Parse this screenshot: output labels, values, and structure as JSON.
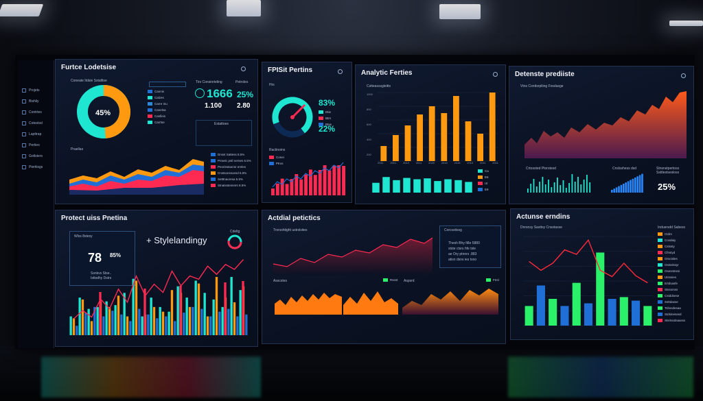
{
  "colors": {
    "cyan": "#1ee6d0",
    "orange": "#ff9a10",
    "red": "#ff2a52",
    "blue": "#1f6fd6",
    "green": "#2bf06a",
    "navy": "#0b1429"
  },
  "sidebar": {
    "items": [
      {
        "label": "Projets",
        "icon": "square-icon"
      },
      {
        "label": "Bishliy",
        "icon": "square-icon"
      },
      {
        "label": "Contrtes",
        "icon": "square-icon"
      },
      {
        "label": "Cotestsd",
        "icon": "square-icon"
      },
      {
        "label": "Lapttrap",
        "icon": "square-icon"
      },
      {
        "label": "Pertieo",
        "icon": "square-icon"
      },
      {
        "label": "Gotlsters",
        "icon": "square-icon"
      },
      {
        "label": "Piertiisgs",
        "icon": "square-icon"
      }
    ]
  },
  "panel1": {
    "title": "Furtce Lodetsise",
    "donut_label": "45%",
    "donut_heading": "Coneate Itdsie Sstalttse",
    "legend": [
      "Cannis",
      "Calzes",
      "Carre  Inu",
      "Canelsa",
      "Casfieis",
      "Carrtse"
    ],
    "kpi_heading": "Tirs Consinrteling",
    "kpi_aside": "Petroles",
    "kpi1": "1666",
    "kpi1_pct": "25%",
    "kpi2": "1.100",
    "kpi2_val": "2.80",
    "kpi_note": "Estattoes",
    "area_title": "Praellas",
    "side_list": [
      "Dnsst Sattess 8.5%",
      "Prraeic pstl nerses 6.5%",
      "Peorisstaonsr ereles",
      "Cnstsonssoesd 6.9%",
      "Setttnaoresa 5.5%",
      "Stnatsstesnnrs 8.5%"
    ]
  },
  "panel2": {
    "title": "FPISit Pertins",
    "sub": "Hrs",
    "kpi_pct1": "83%",
    "kpi_pct2": "22%",
    "kpi_lbl": [
      "Dtie",
      "Btrs",
      "Btas"
    ],
    "bars_title": "Ractinoins",
    "bars_leg": [
      "Conei",
      "Ptros"
    ]
  },
  "panel3": {
    "title": "Analytic Ferties",
    "sub": "Cstteasssgleitts",
    "chart_data": {
      "type": "bar",
      "values": [
        22,
        38,
        52,
        68,
        80,
        70,
        95,
        58,
        40,
        100
      ],
      "cyan": [
        22,
        35,
        28,
        33,
        30,
        32,
        26,
        30,
        28,
        24
      ]
    },
    "ylabels": [
      "1000",
      "800",
      "600",
      "400",
      "200",
      ""
    ],
    "xlabels": [
      "2011",
      "2021",
      "2010",
      "2011",
      "2020",
      "2015",
      "2015",
      "2010",
      "2011",
      "2011"
    ],
    "legend": [
      "Ca",
      "E6",
      "Ut",
      "E9"
    ]
  },
  "panel4": {
    "title": "Detenste prediiste",
    "sub": "Vtns Conttsrpliing Fosdasge",
    "gauge": "25%",
    "mini1": "Crtossted Ptorstesd",
    "mini2": "Cnslsshess dsd",
    "mini3": "Stnsnstpertoss Ssttlestsesloss"
  },
  "panel5": {
    "title": "Protect uiss Pnetina",
    "pct": "78",
    "pct_small": "85%",
    "box_title": "Wlss 8stesy",
    "box_lines": [
      "Ssnkvs Stse..",
      "Isttsdhy Dstrs"
    ],
    "brand": "+ Stylelandingy",
    "ring_lbl": "Cdeltg",
    "chart_data": {
      "type": "bar",
      "series": [
        {
          "name": "",
          "color": "cyan",
          "values": [
            20,
            40,
            28,
            30,
            36,
            32,
            45,
            60,
            20,
            40,
            30,
            25,
            52,
            40,
            58,
            45,
            38,
            30,
            62,
            48
          ]
        },
        {
          "name": "",
          "color": "orange",
          "values": [
            18,
            38,
            15,
            36,
            30,
            42,
            20,
            58,
            22,
            30,
            25,
            48,
            45,
            30,
            55,
            20,
            62,
            40,
            35,
            52
          ]
        },
        {
          "name": "",
          "color": "blue",
          "values": [
            10,
            24,
            30,
            20,
            26,
            22,
            15,
            28,
            22,
            18,
            20,
            15,
            24,
            30,
            28,
            20,
            25,
            28,
            20,
            22
          ]
        }
      ],
      "line": [
        20,
        30,
        22,
        44,
        32,
        56,
        40,
        72,
        48,
        62,
        52,
        78,
        60,
        72,
        68,
        84,
        74,
        86,
        80,
        92
      ]
    }
  },
  "panel6": {
    "title": "Actdial petictics",
    "sub": "Trsrsshtight ustrslsites",
    "box_title": "Corcsstissg",
    "box_lines": [
      "Thesh Bhy  fi8e  5880",
      "stste ctsrs hfe  tsle",
      "ae Ory ptnnrs .883",
      "atisn  dsns  ies  tsno"
    ],
    "sm1": "Asscstes",
    "sm2": "Aspsrd",
    "legend1": "Rssst",
    "legend2": "Ftrsl"
  },
  "panel7": {
    "title": "Actunse erndins",
    "sub": "Dnrsnsy Sasttsy Cnsstasse",
    "legend_title": "Indusrsdd Sabess",
    "chart_data": {
      "type": "bar",
      "values": [
        22,
        45,
        30,
        22,
        48,
        25,
        82,
        30,
        32,
        28,
        22
      ],
      "line": [
        72,
        62,
        70,
        85,
        80,
        96,
        62,
        55,
        70,
        56,
        48
      ]
    },
    "legend": [
      "Ctdrs",
      "Cosdaiy",
      "Cstssty",
      "Cfnstyd",
      "Orsctsles",
      "Ostsslssyr",
      "Osesstnssi",
      "Utsssies",
      "Ertdsasfe",
      "Stsssrsss",
      "Cstddsese",
      "Ssttdasse",
      "Tshssdesaa",
      "Stdsinesasd",
      "Stsrtssdsaasss"
    ]
  }
}
